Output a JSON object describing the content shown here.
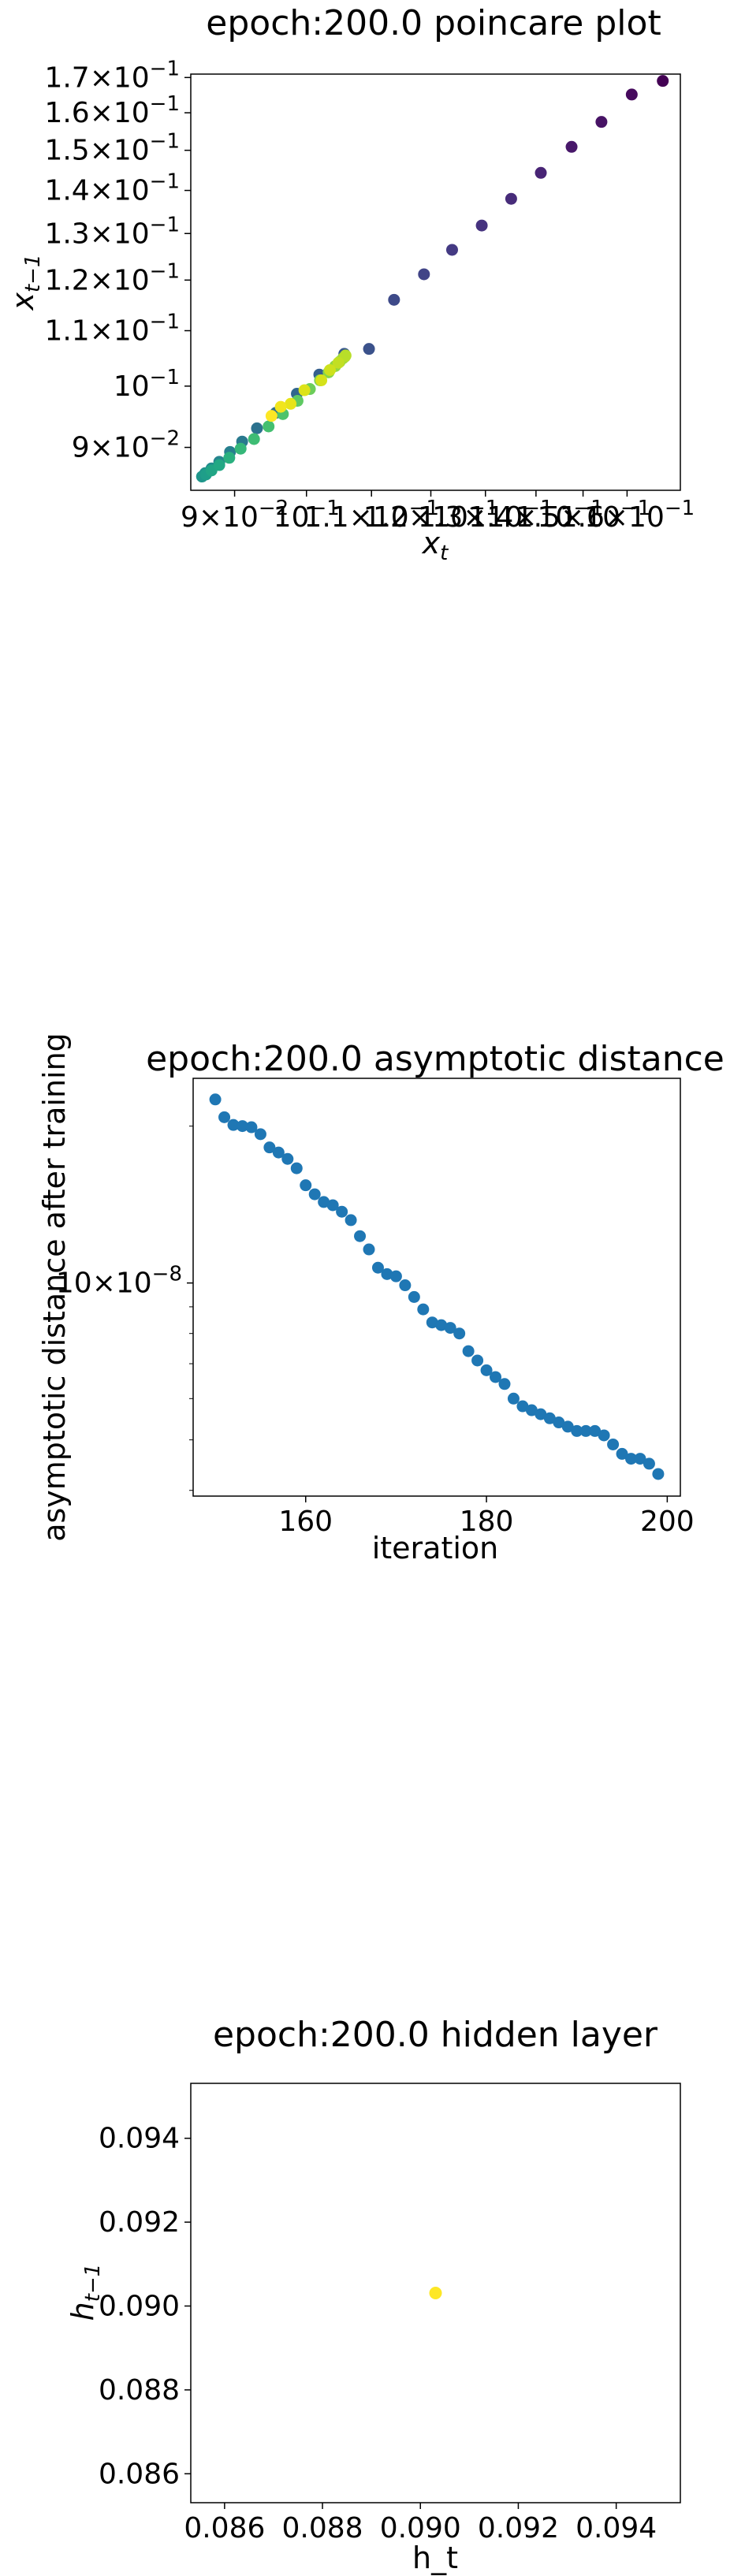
{
  "chart_data": [
    {
      "type": "scatter",
      "title": "epoch:200.0 poincare plot",
      "xlabel": "x_t",
      "ylabel": "x_{t-1}",
      "xscale": "log",
      "yscale": "log",
      "xlim": [
        0.0844,
        0.173
      ],
      "ylim": [
        0.0836,
        0.171
      ],
      "grid": false,
      "colormap": "viridis",
      "xticks": [
        {
          "value": 0.09,
          "mantissa": "9",
          "exp": "-2"
        },
        {
          "value": 0.1,
          "mantissa": "",
          "exp": "-1"
        },
        {
          "value": 0.11,
          "mantissa": "1.1",
          "exp": "-1"
        },
        {
          "value": 0.12,
          "mantissa": "1.2",
          "exp": "-1"
        },
        {
          "value": 0.13,
          "mantissa": "1.3",
          "exp": "-1"
        },
        {
          "value": 0.14,
          "mantissa": "1.4",
          "exp": "-1"
        },
        {
          "value": 0.15,
          "mantissa": "1.5",
          "exp": "-1"
        },
        {
          "value": 0.16,
          "mantissa": "1.6",
          "exp": "-1"
        }
      ],
      "yticks": [
        {
          "value": 0.09,
          "mantissa": "9",
          "exp": "-2"
        },
        {
          "value": 0.1,
          "mantissa": "",
          "exp": "-1"
        },
        {
          "value": 0.11,
          "mantissa": "1.1",
          "exp": "-1"
        },
        {
          "value": 0.12,
          "mantissa": "1.2",
          "exp": "-1"
        },
        {
          "value": 0.13,
          "mantissa": "1.3",
          "exp": "-1"
        },
        {
          "value": 0.14,
          "mantissa": "1.4",
          "exp": "-1"
        },
        {
          "value": 0.15,
          "mantissa": "1.5",
          "exp": "-1"
        },
        {
          "value": 0.16,
          "mantissa": "1.6",
          "exp": "-1"
        },
        {
          "value": 0.17,
          "mantissa": "1.7",
          "exp": "-1"
        }
      ],
      "points": [
        {
          "x": 0.1686,
          "y": 0.169,
          "c": "#440154"
        },
        {
          "x": 0.1611,
          "y": 0.1651,
          "c": "#460a5d"
        },
        {
          "x": 0.1541,
          "y": 0.1575,
          "c": "#471365"
        },
        {
          "x": 0.1475,
          "y": 0.1509,
          "c": "#48186a"
        },
        {
          "x": 0.141,
          "y": 0.1443,
          "c": "#482475"
        },
        {
          "x": 0.135,
          "y": 0.138,
          "c": "#472c7a"
        },
        {
          "x": 0.1293,
          "y": 0.1318,
          "c": "#46337f"
        },
        {
          "x": 0.1238,
          "y": 0.1264,
          "c": "#443a83"
        },
        {
          "x": 0.1188,
          "y": 0.1212,
          "c": "#414487"
        },
        {
          "x": 0.1137,
          "y": 0.116,
          "c": "#3e4a89"
        },
        {
          "x": 0.1096,
          "y": 0.1066,
          "c": "#3b528b"
        },
        {
          "x": 0.1057,
          "y": 0.1057,
          "c": "#38598c"
        },
        {
          "x": 0.1019,
          "y": 0.102,
          "c": "#355f8d"
        },
        {
          "x": 0.0986,
          "y": 0.0987,
          "c": "#31668e"
        },
        {
          "x": 0.0956,
          "y": 0.0955,
          "c": "#2e6e8e"
        },
        {
          "x": 0.093,
          "y": 0.093,
          "c": "#2c728e"
        },
        {
          "x": 0.091,
          "y": 0.0909,
          "c": "#29798e"
        },
        {
          "x": 0.0894,
          "y": 0.0893,
          "c": "#277f8e"
        },
        {
          "x": 0.088,
          "y": 0.0878,
          "c": "#25858e"
        },
        {
          "x": 0.087,
          "y": 0.0868,
          "c": "#228b8d"
        },
        {
          "x": 0.0862,
          "y": 0.0861,
          "c": "#21918c"
        },
        {
          "x": 0.0858,
          "y": 0.0856,
          "c": "#1f968b"
        },
        {
          "x": 0.0863,
          "y": 0.0859,
          "c": "#1f9e89"
        },
        {
          "x": 0.087,
          "y": 0.0865,
          "c": "#21a585"
        },
        {
          "x": 0.088,
          "y": 0.0873,
          "c": "#22a884"
        },
        {
          "x": 0.0893,
          "y": 0.0884,
          "c": "#2ab07f"
        },
        {
          "x": 0.0908,
          "y": 0.0898,
          "c": "#35b779"
        },
        {
          "x": 0.0926,
          "y": 0.0913,
          "c": "#3ebc74"
        },
        {
          "x": 0.0946,
          "y": 0.0933,
          "c": "#44bf70"
        },
        {
          "x": 0.0966,
          "y": 0.0953,
          "c": "#4ec36b"
        },
        {
          "x": 0.0987,
          "y": 0.0975,
          "c": "#5ec962"
        },
        {
          "x": 0.1005,
          "y": 0.0995,
          "c": "#6ccd5a"
        },
        {
          "x": 0.102,
          "y": 0.101,
          "c": "#7ad151"
        },
        {
          "x": 0.1033,
          "y": 0.1024,
          "c": "#86d549"
        },
        {
          "x": 0.1043,
          "y": 0.1035,
          "c": "#90d743"
        },
        {
          "x": 0.105,
          "y": 0.1043,
          "c": "#9cd93b"
        },
        {
          "x": 0.1055,
          "y": 0.1049,
          "c": "#a0da39"
        },
        {
          "x": 0.1058,
          "y": 0.1052,
          "c": "#addc30"
        },
        {
          "x": 0.1059,
          "y": 0.1054,
          "c": "#b8de29"
        },
        {
          "x": 0.1048,
          "y": 0.1041,
          "c": "#c2df23"
        },
        {
          "x": 0.1035,
          "y": 0.1028,
          "c": "#cde11d"
        },
        {
          "x": 0.1022,
          "y": 0.101,
          "c": "#d5e21a"
        },
        {
          "x": 0.0997,
          "y": 0.0993,
          "c": "#dde318"
        },
        {
          "x": 0.0977,
          "y": 0.097,
          "c": "#e7e419"
        },
        {
          "x": 0.0963,
          "y": 0.0965,
          "c": "#f1e51d"
        },
        {
          "x": 0.095,
          "y": 0.095,
          "c": "#fde725"
        }
      ]
    },
    {
      "type": "scatter",
      "title": "epoch:200.0 asymptotic distance",
      "xlabel": "iteration",
      "ylabel": "asymptotic distance after training",
      "yscale": "log",
      "xlim": [
        147.55,
        201.45
      ],
      "ylim": [
        3.9e-09,
        2.47e-08
      ],
      "grid": false,
      "color": "#1f77b4",
      "xticks": [
        160,
        180,
        200
      ],
      "yticks_major": [
        {
          "value": 1e-08,
          "mantissa": "10",
          "exp": "-8"
        }
      ],
      "x": [
        150,
        151,
        152,
        153,
        154,
        155,
        156,
        157,
        158,
        159,
        160,
        161,
        162,
        163,
        164,
        165,
        166,
        167,
        168,
        169,
        170,
        171,
        172,
        173,
        174,
        175,
        176,
        177,
        178,
        179,
        180,
        181,
        182,
        183,
        184,
        185,
        186,
        187,
        188,
        189,
        190,
        191,
        192,
        193,
        194,
        195,
        196,
        197,
        198,
        199
      ],
      "y": [
        2.25e-08,
        2.08e-08,
        2.01e-08,
        2e-08,
        1.99e-08,
        1.93e-08,
        1.82e-08,
        1.78e-08,
        1.73e-08,
        1.66e-08,
        1.54e-08,
        1.48e-08,
        1.43e-08,
        1.41e-08,
        1.37e-08,
        1.32e-08,
        1.23e-08,
        1.16e-08,
        1.07e-08,
        1.04e-08,
        1.03e-08,
        9.9e-09,
        9.4e-09,
        8.9e-09,
        8.4e-09,
        8.3e-09,
        8.2e-09,
        8e-09,
        7.4e-09,
        7.1e-09,
        6.8e-09,
        6.6e-09,
        6.4e-09,
        6e-09,
        5.8e-09,
        5.7e-09,
        5.6e-09,
        5.5e-09,
        5.4e-09,
        5.3e-09,
        5.2e-09,
        5.2e-09,
        5.2e-09,
        5.1e-09,
        4.9e-09,
        4.7e-09,
        4.6e-09,
        4.6e-09,
        4.5e-09,
        4.3e-09
      ]
    },
    {
      "type": "scatter",
      "title": "epoch:200.0 hidden layer",
      "xlabel": "h_t",
      "ylabel": "h_{t-1}",
      "xlim": [
        0.08531,
        0.09531
      ],
      "ylim": [
        0.08531,
        0.09531
      ],
      "grid": false,
      "xticks": [
        0.086,
        0.088,
        0.09,
        0.092,
        0.094
      ],
      "yticks": [
        0.086,
        0.088,
        0.09,
        0.092,
        0.094
      ],
      "xtick_labels": [
        "0.086",
        "0.088",
        "0.090",
        "0.092",
        "0.094"
      ],
      "ytick_labels": [
        "0.086",
        "0.088",
        "0.090",
        "0.092",
        "0.094"
      ],
      "points": [
        {
          "x": 0.09031,
          "y": 0.09031,
          "c": "#fde725"
        }
      ]
    }
  ]
}
